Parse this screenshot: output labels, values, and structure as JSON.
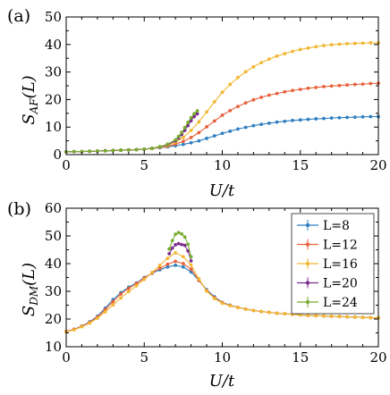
{
  "colors": {
    "L=8": "#2f7fc1",
    "L=12": "#e8613b",
    "L=16": "#f2b631",
    "L=20": "#7b2d8e",
    "L=24": "#77ac30"
  },
  "chart_data": [
    {
      "type": "line",
      "panel_label": "(a)",
      "xlabel": "U/t",
      "ylabel": "S_AF(L)",
      "xlim": [
        0,
        20
      ],
      "ylim": [
        0,
        50
      ],
      "xticks": [
        0,
        5,
        10,
        15,
        20
      ],
      "yticks": [
        0,
        10,
        20,
        30,
        40,
        50
      ],
      "legend": null,
      "series": [
        {
          "name": "L=8",
          "x": [
            0,
            0.5,
            1,
            1.5,
            2,
            2.5,
            3,
            3.5,
            4,
            4.5,
            5,
            5.5,
            6,
            6.5,
            7,
            7.5,
            8,
            8.5,
            9,
            9.5,
            10,
            10.5,
            11,
            11.5,
            12,
            12.5,
            13,
            13.5,
            14,
            14.5,
            15,
            15.5,
            16,
            16.5,
            17,
            17.5,
            18,
            18.5,
            19,
            19.5,
            20
          ],
          "y": [
            1.0,
            1.1,
            1.1,
            1.2,
            1.3,
            1.4,
            1.5,
            1.6,
            1.7,
            1.8,
            2.0,
            2.2,
            2.5,
            2.8,
            3.2,
            3.7,
            4.3,
            5.0,
            5.9,
            6.8,
            7.7,
            8.5,
            9.3,
            9.9,
            10.5,
            11.0,
            11.4,
            11.8,
            12.1,
            12.4,
            12.6,
            12.8,
            13.0,
            13.1,
            13.3,
            13.4,
            13.5,
            13.6,
            13.7,
            13.8,
            13.8
          ]
        },
        {
          "name": "L=12",
          "x": [
            0,
            0.5,
            1,
            1.5,
            2,
            2.5,
            3,
            3.5,
            4,
            4.5,
            5,
            5.5,
            6,
            6.5,
            7,
            7.5,
            8,
            8.5,
            9,
            9.5,
            10,
            10.5,
            11,
            11.5,
            12,
            12.5,
            13,
            13.5,
            14,
            14.5,
            15,
            15.5,
            16,
            16.5,
            17,
            17.5,
            18,
            18.5,
            19,
            19.5,
            20
          ],
          "y": [
            1.0,
            1.1,
            1.1,
            1.2,
            1.3,
            1.4,
            1.5,
            1.6,
            1.7,
            1.8,
            2.0,
            2.2,
            2.6,
            3.0,
            3.8,
            4.8,
            6.2,
            8.0,
            10.1,
            12.2,
            14.3,
            16.0,
            17.5,
            18.8,
            19.9,
            20.8,
            21.6,
            22.2,
            22.8,
            23.3,
            23.7,
            24.1,
            24.4,
            24.7,
            24.9,
            25.1,
            25.3,
            25.5,
            25.6,
            25.8,
            25.9
          ]
        },
        {
          "name": "L=16",
          "x": [
            0,
            0.5,
            1,
            1.5,
            2,
            2.5,
            3,
            3.5,
            4,
            4.5,
            5,
            5.5,
            6,
            6.5,
            7,
            7.5,
            8,
            8.5,
            9,
            9.5,
            10,
            10.5,
            11,
            11.5,
            12,
            12.5,
            13,
            13.5,
            14,
            14.5,
            15,
            15.5,
            16,
            16.5,
            17,
            17.5,
            18,
            18.5,
            19,
            19.5,
            20
          ],
          "y": [
            1.0,
            1.1,
            1.1,
            1.2,
            1.3,
            1.4,
            1.5,
            1.6,
            1.7,
            1.8,
            2.0,
            2.2,
            2.7,
            3.3,
            4.5,
            6.2,
            8.8,
            11.9,
            15.5,
            19.2,
            22.6,
            25.5,
            28.0,
            30.1,
            31.9,
            33.4,
            34.7,
            35.8,
            36.7,
            37.5,
            38.2,
            38.7,
            39.2,
            39.6,
            39.9,
            40.1,
            40.3,
            40.4,
            40.5,
            40.6,
            40.6
          ]
        },
        {
          "name": "L=20",
          "x": [
            0,
            0.5,
            1,
            1.5,
            2,
            2.5,
            3,
            3.5,
            4,
            4.5,
            5,
            5.5,
            6,
            6.5,
            7,
            7.2,
            7.4,
            7.6,
            7.8,
            8.0,
            8.2,
            8.4
          ],
          "y": [
            1.0,
            1.1,
            1.1,
            1.2,
            1.3,
            1.4,
            1.5,
            1.6,
            1.7,
            1.8,
            2.0,
            2.3,
            2.8,
            3.6,
            5.0,
            6.0,
            7.3,
            8.8,
            10.5,
            12.3,
            13.8,
            14.8
          ]
        },
        {
          "name": "L=24",
          "x": [
            0,
            0.5,
            1,
            1.5,
            2,
            2.5,
            3,
            3.5,
            4,
            4.5,
            5,
            5.5,
            6,
            6.5,
            7,
            7.2,
            7.4,
            7.6,
            7.8,
            8.0,
            8.2,
            8.4
          ],
          "y": [
            1.0,
            1.1,
            1.1,
            1.2,
            1.3,
            1.4,
            1.5,
            1.6,
            1.7,
            1.8,
            2.0,
            2.3,
            2.9,
            3.8,
            5.4,
            6.6,
            8.1,
            9.8,
            11.7,
            13.4,
            14.9,
            15.9
          ]
        }
      ]
    },
    {
      "type": "line",
      "panel_label": "(b)",
      "xlabel": "U/t",
      "ylabel": "S_DM(L)",
      "xlim": [
        0,
        20
      ],
      "ylim": [
        10,
        60
      ],
      "xticks": [
        0,
        5,
        10,
        15,
        20
      ],
      "yticks": [
        10,
        20,
        30,
        40,
        50,
        60
      ],
      "legend": "top-right",
      "series": [
        {
          "name": "L=8",
          "x": [
            0,
            0.5,
            1,
            1.5,
            2,
            2.5,
            3,
            3.5,
            4,
            4.5,
            5,
            5.5,
            6,
            6.5,
            7,
            7.5,
            8,
            8.5,
            9,
            9.5,
            10,
            10.5,
            11,
            11.5,
            12,
            12.5,
            13,
            13.5,
            14,
            14.5,
            15,
            15.5,
            16,
            16.5,
            17,
            17.5,
            18,
            18.5,
            19,
            19.5,
            20
          ],
          "y": [
            15.5,
            16.3,
            17.5,
            19.0,
            21.0,
            23.9,
            27.0,
            29.5,
            31.5,
            33.0,
            35.0,
            36.5,
            37.8,
            38.8,
            39.4,
            38.8,
            37.0,
            33.9,
            30.6,
            28.0,
            26.0,
            25.0,
            24.2,
            23.6,
            23.1,
            22.7,
            22.4,
            22.1,
            21.9,
            21.7,
            21.5,
            21.3,
            21.2,
            21.1,
            21.0,
            20.9,
            20.8,
            20.7,
            20.6,
            20.5,
            20.4
          ]
        },
        {
          "name": "L=12",
          "x": [
            0,
            0.5,
            1,
            1.5,
            2,
            2.5,
            3,
            3.5,
            4,
            4.5,
            5,
            5.5,
            6,
            6.5,
            7,
            7.5,
            8,
            8.5,
            9,
            9.5,
            10,
            10.5,
            11,
            11.5,
            12,
            12.5,
            13,
            13.5,
            14,
            14.5,
            15,
            15.5,
            16,
            16.5,
            17,
            17.5,
            18,
            18.5,
            19,
            19.5,
            20
          ],
          "y": [
            15.5,
            16.3,
            17.4,
            18.8,
            20.7,
            23.4,
            26.3,
            29.0,
            31.1,
            32.8,
            34.8,
            36.6,
            38.3,
            39.8,
            40.8,
            40.0,
            38.0,
            34.0,
            30.3,
            27.7,
            25.9,
            24.9,
            24.2,
            23.6,
            23.1,
            22.7,
            22.4,
            22.1,
            21.9,
            21.7,
            21.5,
            21.3,
            21.2,
            21.1,
            21.0,
            20.9,
            20.8,
            20.7,
            20.6,
            20.5,
            20.4
          ]
        },
        {
          "name": "L=16",
          "x": [
            0,
            0.5,
            1,
            1.5,
            2,
            2.5,
            3,
            3.5,
            4,
            4.5,
            5,
            5.5,
            6,
            6.5,
            7,
            7.5,
            8,
            8.5,
            9,
            9.5,
            10,
            10.5,
            11,
            11.5,
            12,
            12.5,
            13,
            13.5,
            14,
            14.5,
            15,
            15.5,
            16,
            16.5,
            17,
            17.5,
            18,
            18.5,
            19,
            19.5,
            20
          ],
          "y": [
            15.4,
            16.1,
            17.2,
            18.5,
            20.3,
            22.6,
            25.1,
            27.6,
            29.9,
            32.0,
            34.3,
            36.8,
            39.4,
            41.9,
            43.9,
            42.5,
            39.5,
            34.5,
            30.1,
            27.4,
            25.7,
            24.8,
            24.1,
            23.6,
            23.1,
            22.7,
            22.4,
            22.1,
            21.9,
            21.7,
            21.5,
            21.3,
            21.2,
            21.1,
            21.0,
            20.9,
            20.8,
            20.7,
            20.6,
            20.5,
            20.4
          ]
        },
        {
          "name": "L=20",
          "x": [
            6.6,
            6.8,
            7.0,
            7.2,
            7.4,
            7.6,
            7.8,
            8.0
          ],
          "y": [
            43.6,
            45.6,
            46.8,
            47.2,
            46.9,
            46.6,
            44.6,
            41.0
          ]
        },
        {
          "name": "L=24",
          "x": [
            6.6,
            6.8,
            7.0,
            7.2,
            7.4,
            7.6,
            7.8,
            8.0
          ],
          "y": [
            45.3,
            48.3,
            50.6,
            51.2,
            50.7,
            49.6,
            47.0,
            42.5
          ]
        }
      ]
    }
  ]
}
